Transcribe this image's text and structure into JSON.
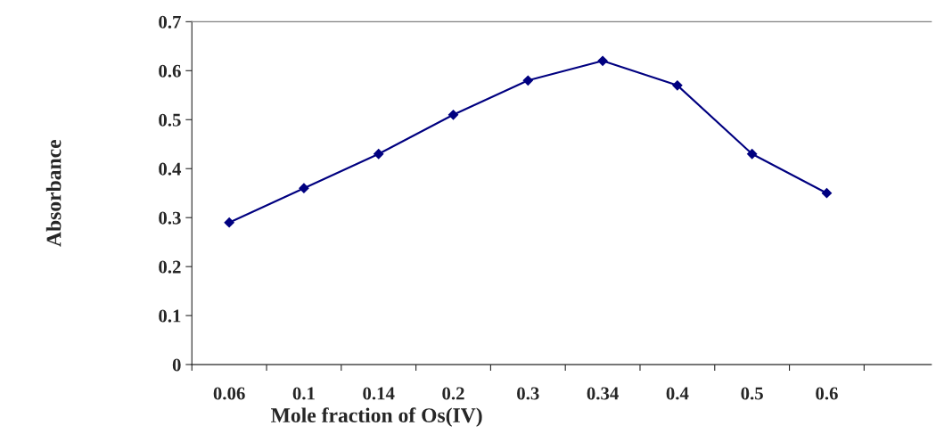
{
  "chart_data": {
    "type": "line",
    "xlabel": "Mole fraction of Os(IV)",
    "ylabel": "Absorbance",
    "categories": [
      "0.06",
      "0.1",
      "0.14",
      "0.2",
      "0.3",
      "0.34",
      "0.4",
      "0.5",
      "0.6",
      null
    ],
    "series": [
      {
        "color": "#000080",
        "values": [
          0.29,
          0.36,
          0.43,
          0.51,
          0.58,
          0.62,
          0.57,
          0.43,
          0.35,
          null
        ]
      }
    ],
    "ylim": [
      0,
      0.7
    ],
    "yticks": [
      0,
      0.1,
      0.2,
      0.3,
      0.4,
      0.5,
      0.6,
      0.7
    ],
    "marker": "diamond",
    "line_style": "solid",
    "grid": false,
    "legend": false
  }
}
